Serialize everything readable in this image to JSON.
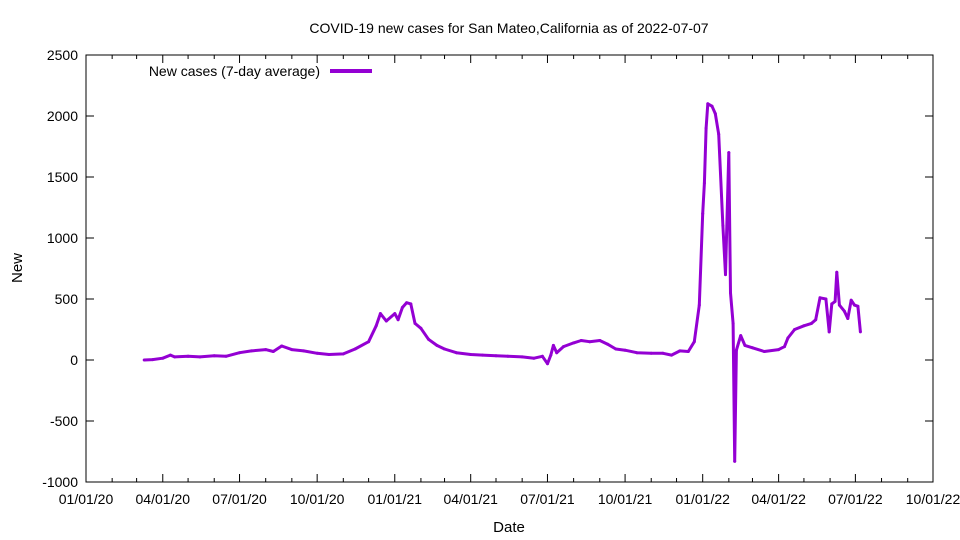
{
  "chart_data": {
    "type": "line",
    "title": "COVID-19 new cases for San Mateo,California as of 2022-07-07",
    "xlabel": "Date",
    "ylabel": "New",
    "x_axis": {
      "type": "date",
      "range": [
        "2020-01-01",
        "2022-10-01"
      ],
      "ticks": [
        "2020-01-01",
        "2020-04-01",
        "2020-07-01",
        "2020-10-01",
        "2021-01-01",
        "2021-04-01",
        "2021-07-01",
        "2021-10-01",
        "2022-01-01",
        "2022-04-01",
        "2022-07-01",
        "2022-10-01"
      ],
      "tick_labels": [
        "01/01/20",
        "04/01/20",
        "07/01/20",
        "10/01/20",
        "01/01/21",
        "04/01/21",
        "07/01/21",
        "10/01/21",
        "01/01/22",
        "04/01/22",
        "07/01/22",
        "10/01/22"
      ]
    },
    "y_axis": {
      "range": [
        -1000,
        2500
      ],
      "ticks": [
        -1000,
        -500,
        0,
        500,
        1000,
        1500,
        2000,
        2500
      ],
      "tick_labels": [
        "-1000",
        "-500",
        "0",
        "500",
        "1000",
        "1500",
        "2000",
        "2500"
      ]
    },
    "grid": false,
    "legend_position": "top-left",
    "series": [
      {
        "name": "New cases (7-day average)",
        "color": "#9400d3",
        "points": [
          [
            "2020-03-10",
            0
          ],
          [
            "2020-03-20",
            3
          ],
          [
            "2020-04-01",
            15
          ],
          [
            "2020-04-10",
            40
          ],
          [
            "2020-04-15",
            25
          ],
          [
            "2020-05-01",
            30
          ],
          [
            "2020-05-15",
            25
          ],
          [
            "2020-06-01",
            35
          ],
          [
            "2020-06-15",
            30
          ],
          [
            "2020-07-01",
            60
          ],
          [
            "2020-07-15",
            75
          ],
          [
            "2020-08-01",
            85
          ],
          [
            "2020-08-10",
            70
          ],
          [
            "2020-08-20",
            115
          ],
          [
            "2020-09-01",
            85
          ],
          [
            "2020-09-15",
            75
          ],
          [
            "2020-10-01",
            55
          ],
          [
            "2020-10-15",
            45
          ],
          [
            "2020-11-01",
            50
          ],
          [
            "2020-11-15",
            90
          ],
          [
            "2020-12-01",
            150
          ],
          [
            "2020-12-10",
            280
          ],
          [
            "2020-12-15",
            380
          ],
          [
            "2020-12-22",
            320
          ],
          [
            "2021-01-01",
            380
          ],
          [
            "2021-01-05",
            330
          ],
          [
            "2021-01-10",
            430
          ],
          [
            "2021-01-15",
            470
          ],
          [
            "2021-01-20",
            460
          ],
          [
            "2021-01-25",
            300
          ],
          [
            "2021-02-01",
            260
          ],
          [
            "2021-02-10",
            170
          ],
          [
            "2021-02-20",
            120
          ],
          [
            "2021-03-01",
            90
          ],
          [
            "2021-03-15",
            60
          ],
          [
            "2021-04-01",
            45
          ],
          [
            "2021-04-15",
            40
          ],
          [
            "2021-05-01",
            35
          ],
          [
            "2021-05-15",
            30
          ],
          [
            "2021-06-01",
            25
          ],
          [
            "2021-06-15",
            15
          ],
          [
            "2021-06-25",
            30
          ],
          [
            "2021-07-01",
            -30
          ],
          [
            "2021-07-05",
            40
          ],
          [
            "2021-07-08",
            120
          ],
          [
            "2021-07-12",
            60
          ],
          [
            "2021-07-20",
            110
          ],
          [
            "2021-08-01",
            140
          ],
          [
            "2021-08-10",
            160
          ],
          [
            "2021-08-20",
            150
          ],
          [
            "2021-09-01",
            160
          ],
          [
            "2021-09-10",
            130
          ],
          [
            "2021-09-20",
            90
          ],
          [
            "2021-10-01",
            80
          ],
          [
            "2021-10-15",
            60
          ],
          [
            "2021-11-01",
            55
          ],
          [
            "2021-11-15",
            55
          ],
          [
            "2021-11-25",
            40
          ],
          [
            "2021-12-05",
            75
          ],
          [
            "2021-12-15",
            70
          ],
          [
            "2021-12-22",
            150
          ],
          [
            "2021-12-28",
            450
          ],
          [
            "2022-01-01",
            1200
          ],
          [
            "2022-01-03",
            1450
          ],
          [
            "2022-01-05",
            1900
          ],
          [
            "2022-01-07",
            2100
          ],
          [
            "2022-01-12",
            2080
          ],
          [
            "2022-01-16",
            2020
          ],
          [
            "2022-01-20",
            1850
          ],
          [
            "2022-01-25",
            1100
          ],
          [
            "2022-01-28",
            700
          ],
          [
            "2022-02-01",
            1700
          ],
          [
            "2022-02-03",
            550
          ],
          [
            "2022-02-06",
            300
          ],
          [
            "2022-02-08",
            -830
          ],
          [
            "2022-02-10",
            80
          ],
          [
            "2022-02-15",
            200
          ],
          [
            "2022-02-20",
            120
          ],
          [
            "2022-03-01",
            100
          ],
          [
            "2022-03-15",
            70
          ],
          [
            "2022-04-01",
            85
          ],
          [
            "2022-04-08",
            110
          ],
          [
            "2022-04-12",
            180
          ],
          [
            "2022-04-20",
            250
          ],
          [
            "2022-05-01",
            280
          ],
          [
            "2022-05-10",
            300
          ],
          [
            "2022-05-15",
            330
          ],
          [
            "2022-05-20",
            510
          ],
          [
            "2022-05-27",
            500
          ],
          [
            "2022-05-31",
            230
          ],
          [
            "2022-06-03",
            460
          ],
          [
            "2022-06-07",
            480
          ],
          [
            "2022-06-09",
            720
          ],
          [
            "2022-06-12",
            450
          ],
          [
            "2022-06-18",
            400
          ],
          [
            "2022-06-22",
            340
          ],
          [
            "2022-06-26",
            490
          ],
          [
            "2022-06-30",
            450
          ],
          [
            "2022-07-04",
            440
          ],
          [
            "2022-07-07",
            230
          ]
        ]
      }
    ]
  }
}
